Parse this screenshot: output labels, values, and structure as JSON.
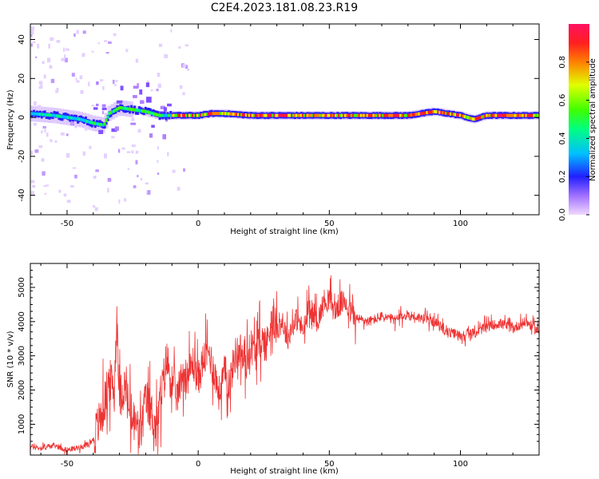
{
  "figure": {
    "title": "C2E4.2023.181.08.23.R19"
  },
  "chart_data": [
    {
      "type": "heatmap",
      "xlabel": "Height of straight line (km)",
      "ylabel": "Frequency (Hz)",
      "xlim": [
        -64,
        130
      ],
      "ylim": [
        -50,
        48
      ],
      "x_ticks": [
        -50,
        0,
        50,
        100
      ],
      "y_ticks": [
        -40,
        -20,
        0,
        20,
        40
      ],
      "grid": false,
      "ridge": {
        "description_values": "dominant-frequency ridge (Hz) vs height (km)",
        "x": [
          -64,
          -55,
          -50,
          -45,
          -40,
          -36,
          -34,
          -30,
          -25,
          -20,
          -15,
          -10,
          -5,
          0,
          5,
          10,
          20,
          50,
          80,
          90,
          100,
          105,
          110,
          130
        ],
        "y": [
          2,
          1,
          0,
          -1,
          -3,
          -4,
          2,
          5,
          4,
          3,
          1,
          1,
          1,
          1,
          2,
          2,
          1,
          1,
          1,
          3,
          1,
          -1,
          1,
          1
        ]
      },
      "colorbar": {
        "label": "Normalized spectral amplitude",
        "range": [
          0,
          1
        ],
        "ticks": [
          "0.0",
          "0.2",
          "0.4",
          "0.6",
          "0.8"
        ],
        "tick_values": [
          0.0,
          0.2,
          0.4,
          0.6,
          0.8
        ],
        "colormap": [
          "#f0d8ff",
          "#a070ff",
          "#2020ff",
          "#00c0ff",
          "#00ff80",
          "#40ff00",
          "#e0ff00",
          "#ff8000",
          "#ff2020",
          "#ff1060"
        ]
      }
    },
    {
      "type": "line",
      "xlabel": "Height of straight line (km)",
      "ylabel": "SNR (10 * v/v)",
      "xlim": [
        -64,
        130
      ],
      "ylim": [
        100,
        5700
      ],
      "x_ticks": [
        -50,
        0,
        50,
        100
      ],
      "y_ticks": [
        1000,
        2000,
        3000,
        4000,
        5000
      ],
      "grid": false,
      "color": "#ee3333",
      "series": [
        {
          "x": [
            -64,
            -60,
            -55,
            -50,
            -45,
            -42,
            -40,
            -38,
            -36,
            -34,
            -32,
            -31,
            -30,
            -28,
            -26,
            -24,
            -22,
            -20,
            -18,
            -16,
            -14,
            -12,
            -10,
            -8,
            -6,
            -4,
            -2,
            0,
            2,
            4,
            6,
            8,
            10,
            12,
            14,
            16,
            18,
            20,
            22,
            24,
            26,
            28,
            30,
            32,
            34,
            36,
            38,
            40,
            42,
            44,
            46,
            48,
            50,
            52,
            54,
            56,
            58,
            60,
            65,
            70,
            75,
            80,
            85,
            90,
            95,
            100,
            105,
            110,
            115,
            120,
            125,
            130
          ],
          "y": [
            350,
            300,
            380,
            250,
            330,
            420,
            550,
            1000,
            1500,
            2300,
            2000,
            4200,
            1800,
            2100,
            1300,
            1000,
            700,
            1700,
            1400,
            800,
            1900,
            2900,
            2200,
            1800,
            2500,
            2400,
            2800,
            2300,
            2900,
            3100,
            2600,
            1900,
            2500,
            2200,
            3000,
            3200,
            2700,
            3300,
            3100,
            3500,
            3300,
            4100,
            3800,
            4000,
            3500,
            3900,
            4100,
            3700,
            4300,
            4200,
            4100,
            4600,
            4700,
            4300,
            4500,
            4600,
            4300,
            4100,
            4000,
            4150,
            4050,
            4200,
            4100,
            4000,
            3700,
            3600,
            3650,
            3850,
            3950,
            3800,
            4000,
            3700
          ]
        }
      ]
    }
  ]
}
